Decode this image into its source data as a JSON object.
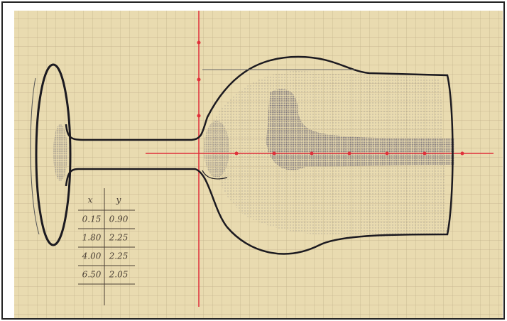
{
  "table": {
    "header": [
      "x",
      "y"
    ],
    "rows": [
      [
        "0.15",
        "0.90"
      ],
      [
        "1.80",
        "2.25"
      ],
      [
        "4.00",
        "2.25"
      ],
      [
        "6.50",
        "2.05"
      ]
    ]
  }
}
